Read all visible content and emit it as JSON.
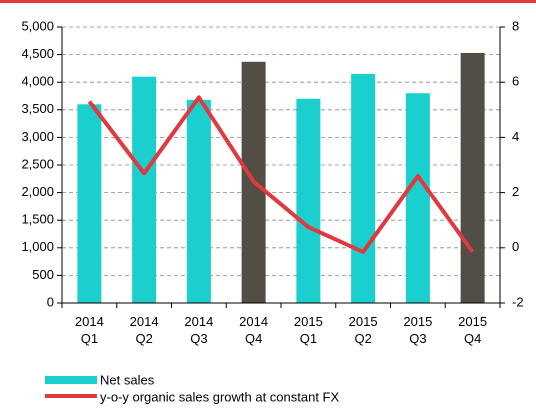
{
  "chart_data": {
    "type": "bar-line",
    "categories": [
      "2014 Q1",
      "2014 Q2",
      "2014 Q3",
      "2014 Q4",
      "2015 Q1",
      "2015 Q2",
      "2015 Q3",
      "2015 Q4"
    ],
    "series": [
      {
        "name": "Net sales",
        "color": "#1ccfcf",
        "colors": [
          "#1ccfcf",
          "#1ccfcf",
          "#1ccfcf",
          "#524e45",
          "#1ccfcf",
          "#1ccfcf",
          "#1ccfcf",
          "#524e45"
        ],
        "values": [
          3600,
          4100,
          3680,
          4370,
          3700,
          4150,
          3800,
          4530
        ]
      },
      {
        "name": "y-o-y organic sales growth at constant FX",
        "color": "#e0393e",
        "axis": "y2",
        "values": [
          5.3,
          2.7,
          5.45,
          2.4,
          0.75,
          -0.15,
          2.6,
          -0.15
        ]
      }
    ],
    "ylim": [
      0,
      5000
    ],
    "yticks": [
      0,
      500,
      {
        "value": 1000,
        "label": "1,000"
      },
      {
        "value": 1500,
        "label": "1,500"
      },
      {
        "value": 2000,
        "label": "2,000"
      },
      {
        "value": 2500,
        "label": "2,500"
      },
      {
        "value": 3000,
        "label": "3,000"
      },
      {
        "value": 3500,
        "label": "3,500"
      },
      {
        "value": 4000,
        "label": "4,000"
      },
      {
        "value": 4500,
        "label": "4,500"
      },
      {
        "value": 5000,
        "label": "5,000"
      }
    ],
    "y2lim": [
      -2,
      8
    ],
    "y2ticks": [
      -2,
      0,
      2,
      4,
      6,
      8
    ],
    "grid": true
  }
}
